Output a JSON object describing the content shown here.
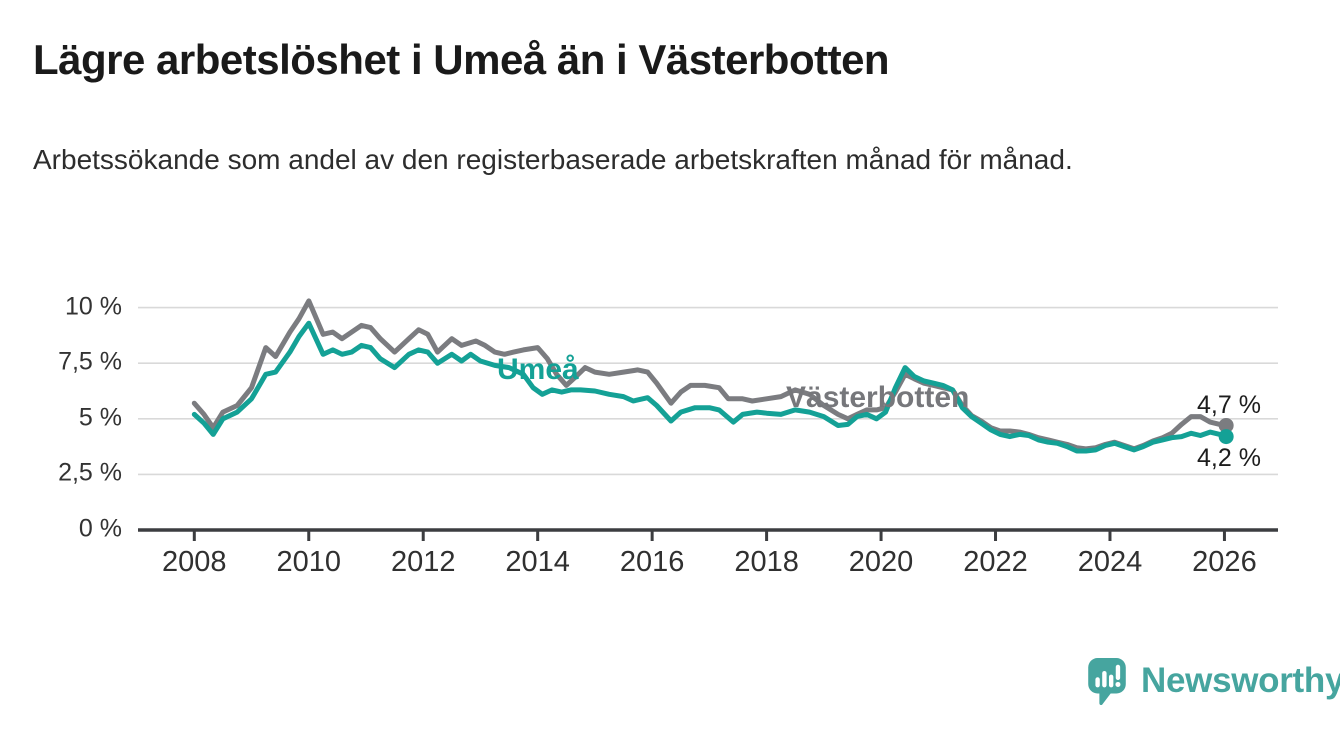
{
  "chart_data": {
    "type": "line",
    "title": "Lägre arbetslöshet i Umeå än i Västerbotten",
    "subtitle": "Arbetssökande som andel av den registerbaserade arbetskraften månad för månad.",
    "unit": "%",
    "x_unit": "decimal_year",
    "frequency": "monthly (values estimated from plot, ~6 per year)",
    "grid": "horizontal",
    "legend_position": "inline-line-labels",
    "ylim": [
      0,
      11
    ],
    "xlim": [
      2007,
      2027
    ],
    "y_ticks": [
      {
        "value": 0,
        "label": "0 %"
      },
      {
        "value": 2.5,
        "label": "2,5 %"
      },
      {
        "value": 5,
        "label": "5 %"
      },
      {
        "value": 7.5,
        "label": "7,5 %"
      },
      {
        "value": 10,
        "label": "10 %"
      }
    ],
    "x_ticks": [
      {
        "value": 2008,
        "label": "2008"
      },
      {
        "value": 2010,
        "label": "2010"
      },
      {
        "value": 2012,
        "label": "2012"
      },
      {
        "value": 2014,
        "label": "2014"
      },
      {
        "value": 2016,
        "label": "2016"
      },
      {
        "value": 2018,
        "label": "2018"
      },
      {
        "value": 2020,
        "label": "2020"
      },
      {
        "value": 2022,
        "label": "2022"
      },
      {
        "value": 2024,
        "label": "2024"
      },
      {
        "value": 2026,
        "label": "2026"
      }
    ],
    "colors": {
      "axis": "#3c3d40",
      "grid": "#d9d9d9",
      "tick_text": "#303030",
      "accent_teal": "#14a196",
      "neutral_gray": "#7b7c80"
    },
    "series": [
      {
        "name": "Västerbotten",
        "color": "#7b7c80",
        "end_label": "4,7 %",
        "end_value": 4.7,
        "points": [
          [
            2008.0,
            5.7
          ],
          [
            2008.17,
            5.2
          ],
          [
            2008.33,
            4.6
          ],
          [
            2008.5,
            5.3
          ],
          [
            2008.75,
            5.6
          ],
          [
            2009.0,
            6.4
          ],
          [
            2009.25,
            8.2
          ],
          [
            2009.42,
            7.8
          ],
          [
            2009.67,
            8.9
          ],
          [
            2009.83,
            9.5
          ],
          [
            2010.0,
            10.3
          ],
          [
            2010.25,
            8.8
          ],
          [
            2010.42,
            8.9
          ],
          [
            2010.58,
            8.6
          ],
          [
            2010.75,
            8.9
          ],
          [
            2010.92,
            9.2
          ],
          [
            2011.08,
            9.1
          ],
          [
            2011.25,
            8.6
          ],
          [
            2011.5,
            8.0
          ],
          [
            2011.75,
            8.6
          ],
          [
            2011.92,
            9.0
          ],
          [
            2012.08,
            8.8
          ],
          [
            2012.25,
            8.0
          ],
          [
            2012.5,
            8.6
          ],
          [
            2012.67,
            8.3
          ],
          [
            2012.92,
            8.5
          ],
          [
            2013.08,
            8.3
          ],
          [
            2013.25,
            8.0
          ],
          [
            2013.42,
            7.9
          ],
          [
            2013.58,
            8.0
          ],
          [
            2013.75,
            8.1
          ],
          [
            2014.0,
            8.2
          ],
          [
            2014.17,
            7.7
          ],
          [
            2014.33,
            7.0
          ],
          [
            2014.5,
            6.5
          ],
          [
            2014.67,
            6.9
          ],
          [
            2014.83,
            7.3
          ],
          [
            2015.0,
            7.1
          ],
          [
            2015.25,
            7.0
          ],
          [
            2015.5,
            7.1
          ],
          [
            2015.75,
            7.2
          ],
          [
            2015.92,
            7.1
          ],
          [
            2016.08,
            6.6
          ],
          [
            2016.33,
            5.7
          ],
          [
            2016.5,
            6.2
          ],
          [
            2016.67,
            6.5
          ],
          [
            2016.92,
            6.5
          ],
          [
            2017.17,
            6.4
          ],
          [
            2017.33,
            5.9
          ],
          [
            2017.58,
            5.9
          ],
          [
            2017.75,
            5.8
          ],
          [
            2018.0,
            5.9
          ],
          [
            2018.25,
            6.0
          ],
          [
            2018.5,
            6.3
          ],
          [
            2018.75,
            6.1
          ],
          [
            2019.0,
            5.6
          ],
          [
            2019.25,
            5.2
          ],
          [
            2019.42,
            5.0
          ],
          [
            2019.58,
            5.2
          ],
          [
            2019.75,
            5.4
          ],
          [
            2019.92,
            5.4
          ],
          [
            2020.08,
            5.5
          ],
          [
            2020.25,
            6.2
          ],
          [
            2020.42,
            7.0
          ],
          [
            2020.58,
            6.8
          ],
          [
            2020.75,
            6.6
          ],
          [
            2020.92,
            6.5
          ],
          [
            2021.08,
            6.4
          ],
          [
            2021.25,
            6.3
          ],
          [
            2021.42,
            5.6
          ],
          [
            2021.58,
            5.15
          ],
          [
            2021.75,
            4.9
          ],
          [
            2021.92,
            4.6
          ],
          [
            2022.08,
            4.45
          ],
          [
            2022.25,
            4.45
          ],
          [
            2022.42,
            4.4
          ],
          [
            2022.58,
            4.3
          ],
          [
            2022.75,
            4.15
          ],
          [
            2022.92,
            4.05
          ],
          [
            2023.08,
            3.95
          ],
          [
            2023.25,
            3.85
          ],
          [
            2023.42,
            3.7
          ],
          [
            2023.58,
            3.65
          ],
          [
            2023.75,
            3.7
          ],
          [
            2023.92,
            3.85
          ],
          [
            2024.08,
            3.95
          ],
          [
            2024.25,
            3.8
          ],
          [
            2024.42,
            3.65
          ],
          [
            2024.58,
            3.8
          ],
          [
            2024.75,
            4.0
          ],
          [
            2024.92,
            4.15
          ],
          [
            2025.08,
            4.35
          ],
          [
            2025.25,
            4.75
          ],
          [
            2025.42,
            5.1
          ],
          [
            2025.58,
            5.1
          ],
          [
            2025.75,
            4.85
          ],
          [
            2025.92,
            4.75
          ],
          [
            2026.03,
            4.7
          ]
        ]
      },
      {
        "name": "Umeå",
        "color": "#14a196",
        "end_label": "4,2 %",
        "end_value": 4.2,
        "points": [
          [
            2008.0,
            5.2
          ],
          [
            2008.17,
            4.8
          ],
          [
            2008.33,
            4.3
          ],
          [
            2008.5,
            5.0
          ],
          [
            2008.75,
            5.3
          ],
          [
            2009.0,
            5.9
          ],
          [
            2009.25,
            7.0
          ],
          [
            2009.42,
            7.1
          ],
          [
            2009.67,
            8.0
          ],
          [
            2009.83,
            8.7
          ],
          [
            2010.0,
            9.3
          ],
          [
            2010.25,
            7.9
          ],
          [
            2010.42,
            8.1
          ],
          [
            2010.58,
            7.9
          ],
          [
            2010.75,
            8.0
          ],
          [
            2010.92,
            8.3
          ],
          [
            2011.08,
            8.2
          ],
          [
            2011.25,
            7.7
          ],
          [
            2011.5,
            7.3
          ],
          [
            2011.75,
            7.9
          ],
          [
            2011.92,
            8.1
          ],
          [
            2012.08,
            8.0
          ],
          [
            2012.25,
            7.5
          ],
          [
            2012.5,
            7.9
          ],
          [
            2012.67,
            7.6
          ],
          [
            2012.83,
            7.9
          ],
          [
            2013.0,
            7.6
          ],
          [
            2013.25,
            7.4
          ],
          [
            2013.5,
            7.3
          ],
          [
            2013.75,
            7.0
          ],
          [
            2013.92,
            6.4
          ],
          [
            2014.08,
            6.1
          ],
          [
            2014.25,
            6.3
          ],
          [
            2014.42,
            6.2
          ],
          [
            2014.58,
            6.3
          ],
          [
            2014.75,
            6.3
          ],
          [
            2015.0,
            6.25
          ],
          [
            2015.25,
            6.1
          ],
          [
            2015.5,
            6.0
          ],
          [
            2015.67,
            5.8
          ],
          [
            2015.92,
            5.95
          ],
          [
            2016.08,
            5.6
          ],
          [
            2016.33,
            4.9
          ],
          [
            2016.5,
            5.3
          ],
          [
            2016.75,
            5.5
          ],
          [
            2017.0,
            5.5
          ],
          [
            2017.17,
            5.4
          ],
          [
            2017.42,
            4.85
          ],
          [
            2017.58,
            5.2
          ],
          [
            2017.83,
            5.3
          ],
          [
            2018.0,
            5.25
          ],
          [
            2018.25,
            5.2
          ],
          [
            2018.5,
            5.4
          ],
          [
            2018.75,
            5.3
          ],
          [
            2019.0,
            5.1
          ],
          [
            2019.25,
            4.7
          ],
          [
            2019.42,
            4.75
          ],
          [
            2019.58,
            5.1
          ],
          [
            2019.75,
            5.2
          ],
          [
            2019.92,
            5.0
          ],
          [
            2020.08,
            5.3
          ],
          [
            2020.25,
            6.4
          ],
          [
            2020.42,
            7.3
          ],
          [
            2020.58,
            6.9
          ],
          [
            2020.75,
            6.7
          ],
          [
            2020.92,
            6.6
          ],
          [
            2021.08,
            6.5
          ],
          [
            2021.25,
            6.3
          ],
          [
            2021.42,
            5.5
          ],
          [
            2021.58,
            5.1
          ],
          [
            2021.75,
            4.8
          ],
          [
            2021.92,
            4.5
          ],
          [
            2022.08,
            4.3
          ],
          [
            2022.25,
            4.2
          ],
          [
            2022.42,
            4.3
          ],
          [
            2022.58,
            4.25
          ],
          [
            2022.75,
            4.05
          ],
          [
            2022.92,
            3.95
          ],
          [
            2023.08,
            3.9
          ],
          [
            2023.25,
            3.75
          ],
          [
            2023.42,
            3.55
          ],
          [
            2023.58,
            3.55
          ],
          [
            2023.75,
            3.6
          ],
          [
            2023.92,
            3.8
          ],
          [
            2024.08,
            3.9
          ],
          [
            2024.25,
            3.75
          ],
          [
            2024.42,
            3.6
          ],
          [
            2024.58,
            3.75
          ],
          [
            2024.75,
            3.95
          ],
          [
            2024.92,
            4.05
          ],
          [
            2025.08,
            4.15
          ],
          [
            2025.25,
            4.2
          ],
          [
            2025.42,
            4.35
          ],
          [
            2025.58,
            4.25
          ],
          [
            2025.75,
            4.4
          ],
          [
            2025.92,
            4.3
          ],
          [
            2026.03,
            4.2
          ]
        ]
      }
    ]
  },
  "branding": {
    "logo_text": "Newsworthy"
  }
}
